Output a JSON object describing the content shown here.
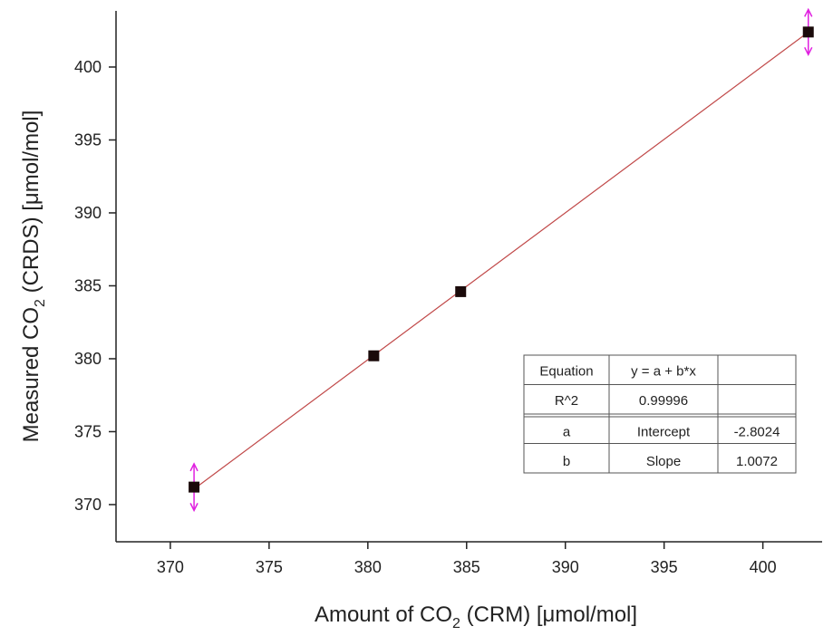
{
  "chart_data": {
    "type": "scatter",
    "xlabel": {
      "before": "Amount of CO",
      "sub": "2",
      "after": " (CRM)    [μmol/mol]"
    },
    "ylabel": {
      "before": "Measured CO",
      "sub": "2",
      "after": "  (CRDS)  [μmol/mol]"
    },
    "x": [
      371.2,
      380.3,
      384.7,
      402.3
    ],
    "series": [
      {
        "values": [
          371.2,
          380.2,
          384.6,
          402.4
        ],
        "errors": [
          1.6,
          null,
          null,
          1.55
        ],
        "color": "#1a0a0a",
        "error_color": "#e020e0"
      }
    ],
    "fit": {
      "color": "#c04848",
      "equation_label": "Equation",
      "equation": "y = a + b*x",
      "r2_label": "R^2",
      "r2": 0.99996,
      "params": [
        {
          "name": "a",
          "label": "Intercept",
          "value": -2.8024
        },
        {
          "name": "b",
          "label": "Slope",
          "value": 1.0072
        }
      ]
    },
    "xlim": [
      367.25,
      403
    ],
    "ylim": [
      367.45,
      403.85
    ],
    "xticks": [
      370,
      375,
      380,
      385,
      390,
      395,
      400
    ],
    "yticks": [
      370,
      375,
      380,
      385,
      390,
      395,
      400
    ]
  }
}
